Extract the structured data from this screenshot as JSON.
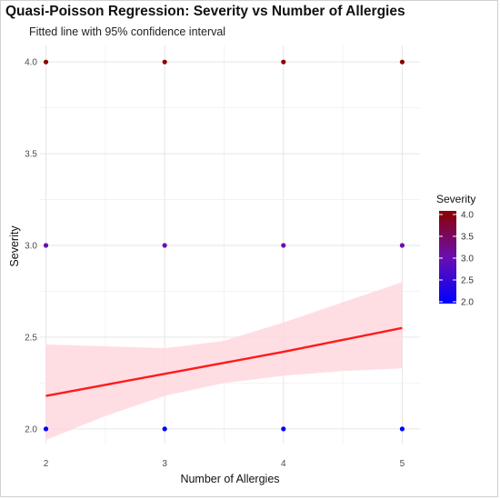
{
  "chart_data": {
    "type": "scatter",
    "title": "Quasi-Poisson Regression: Severity vs Number of Allergies",
    "subtitle": "Fitted line with 95% confidence interval",
    "xlabel": "Number of Allergies",
    "ylabel": "Severity",
    "xlim": [
      1.95,
      5.15
    ],
    "ylim": [
      1.92,
      4.09
    ],
    "x_ticks": [
      "2",
      "3",
      "4",
      "5"
    ],
    "y_ticks": [
      "2.0",
      "2.5",
      "3.0",
      "3.5",
      "4.0"
    ],
    "grid": true,
    "points": [
      {
        "x": 2,
        "y": 4.0
      },
      {
        "x": 3,
        "y": 4.0
      },
      {
        "x": 4,
        "y": 4.0
      },
      {
        "x": 5,
        "y": 4.0
      },
      {
        "x": 2,
        "y": 3.0
      },
      {
        "x": 3,
        "y": 3.0
      },
      {
        "x": 4,
        "y": 3.0
      },
      {
        "x": 5,
        "y": 3.0
      },
      {
        "x": 2,
        "y": 2.0
      },
      {
        "x": 3,
        "y": 2.0
      },
      {
        "x": 4,
        "y": 2.0
      },
      {
        "x": 5,
        "y": 2.0
      }
    ],
    "fit": {
      "name": "Fitted line",
      "x": [
        2,
        2.5,
        3,
        3.5,
        4,
        4.5,
        5
      ],
      "y": [
        2.18,
        2.24,
        2.3,
        2.36,
        2.42,
        2.485,
        2.55
      ],
      "lower": [
        1.94,
        2.07,
        2.18,
        2.25,
        2.29,
        2.315,
        2.33
      ],
      "upper": [
        2.46,
        2.45,
        2.44,
        2.48,
        2.58,
        2.69,
        2.8
      ],
      "line_color": "#ff1a1a",
      "band_color": "#ffd6dc"
    },
    "legend": {
      "title": "Severity",
      "position": "right",
      "ticks": [
        "4.0",
        "3.5",
        "3.0",
        "2.5",
        "2.0"
      ],
      "min": 2.0,
      "max": 4.0,
      "low_color": "#0000ff",
      "high_color": "#8b0000"
    }
  }
}
